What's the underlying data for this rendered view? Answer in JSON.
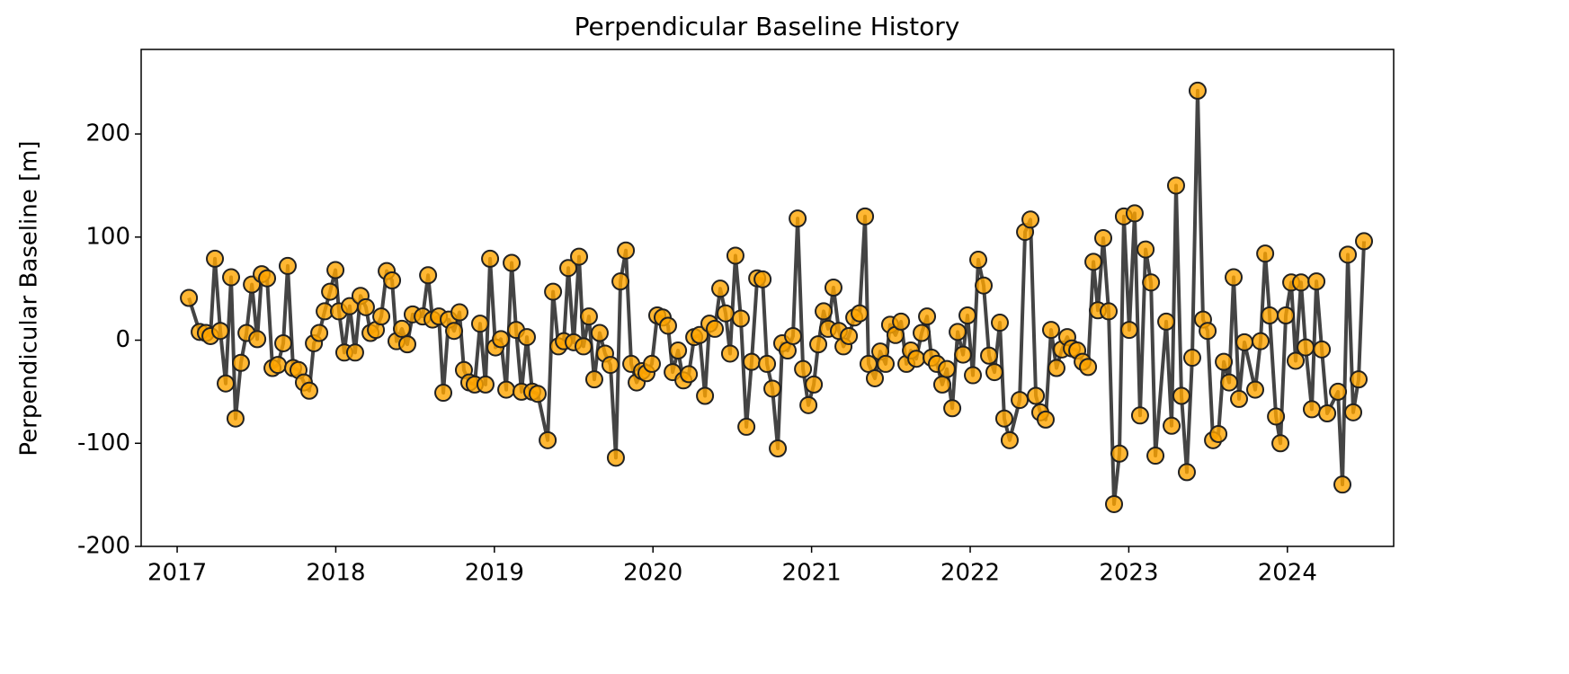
{
  "chart_data": {
    "type": "line",
    "title": "Perpendicular Baseline History",
    "ylabel": "Perpendicular Baseline [m]",
    "line_color": "#444444",
    "marker_color": "#ffa500",
    "marker_edge": "#222222",
    "xlim": [
      2016.773,
      2024.67
    ],
    "xticks": [
      2017,
      2018,
      2019,
      2020,
      2021,
      2022,
      2023,
      2024
    ],
    "ylim": [
      -200,
      282
    ],
    "yticks": [
      -200,
      -100,
      0,
      100,
      200
    ],
    "x": [
      2017.074,
      2017.142,
      2017.181,
      2017.21,
      2017.238,
      2017.272,
      2017.306,
      2017.34,
      2017.368,
      2017.402,
      2017.437,
      2017.471,
      2017.505,
      2017.533,
      2017.567,
      2017.601,
      2017.635,
      2017.669,
      2017.697,
      2017.731,
      2017.765,
      2017.799,
      2017.833,
      2017.862,
      2017.896,
      2017.93,
      2017.964,
      2017.998,
      2018.02,
      2018.054,
      2018.088,
      2018.122,
      2018.156,
      2018.19,
      2018.219,
      2018.253,
      2018.287,
      2018.321,
      2018.355,
      2018.383,
      2018.417,
      2018.451,
      2018.485,
      2018.548,
      2018.582,
      2018.61,
      2018.65,
      2018.678,
      2018.712,
      2018.746,
      2018.78,
      2018.808,
      2018.842,
      2018.876,
      2018.91,
      2018.944,
      2018.973,
      2019.007,
      2019.041,
      2019.075,
      2019.109,
      2019.137,
      2019.171,
      2019.205,
      2019.239,
      2019.273,
      2019.336,
      2019.37,
      2019.404,
      2019.438,
      2019.466,
      2019.5,
      2019.534,
      2019.562,
      2019.596,
      2019.63,
      2019.664,
      2019.698,
      2019.732,
      2019.766,
      2019.795,
      2019.829,
      2019.863,
      2019.897,
      2019.931,
      2019.959,
      2019.993,
      2020.027,
      2020.061,
      2020.095,
      2020.124,
      2020.158,
      2020.192,
      2020.226,
      2020.26,
      2020.294,
      2020.328,
      2020.356,
      2020.39,
      2020.424,
      2020.458,
      2020.486,
      2020.52,
      2020.554,
      2020.589,
      2020.622,
      2020.657,
      2020.691,
      2020.719,
      2020.753,
      2020.787,
      2020.815,
      2020.849,
      2020.883,
      2020.912,
      2020.946,
      2020.98,
      2021.014,
      2021.042,
      2021.076,
      2021.104,
      2021.138,
      2021.172,
      2021.201,
      2021.235,
      2021.269,
      2021.303,
      2021.337,
      2021.359,
      2021.399,
      2021.433,
      2021.467,
      2021.495,
      2021.529,
      2021.564,
      2021.598,
      2021.626,
      2021.66,
      2021.694,
      2021.728,
      2021.756,
      2021.79,
      2021.824,
      2021.853,
      2021.887,
      2021.921,
      2021.955,
      2021.983,
      2022.017,
      2022.051,
      2022.085,
      2022.119,
      2022.153,
      2022.187,
      2022.215,
      2022.249,
      2022.312,
      2022.346,
      2022.38,
      2022.414,
      2022.442,
      2022.476,
      2022.51,
      2022.544,
      2022.578,
      2022.612,
      2022.641,
      2022.675,
      2022.709,
      2022.743,
      2022.777,
      2022.805,
      2022.839,
      2022.873,
      2022.907,
      2022.941,
      2022.969,
      2023.003,
      2023.037,
      2023.071,
      2023.106,
      2023.14,
      2023.168,
      2023.236,
      2023.27,
      2023.298,
      2023.332,
      2023.366,
      2023.4,
      2023.434,
      2023.468,
      2023.497,
      2023.531,
      2023.565,
      2023.599,
      2023.633,
      2023.661,
      2023.695,
      2023.729,
      2023.797,
      2023.831,
      2023.86,
      2023.888,
      2023.928,
      2023.956,
      2023.99,
      2024.024,
      2024.052,
      2024.086,
      2024.115,
      2024.154,
      2024.183,
      2024.217,
      2024.251,
      2024.319,
      2024.347,
      2024.381,
      2024.415,
      2024.449,
      2024.483
    ],
    "values": [
      41,
      8,
      7,
      4,
      79,
      9,
      -42,
      61,
      -76,
      -22,
      7,
      54,
      1,
      64,
      60,
      -27,
      -24,
      -3,
      72,
      -27,
      -29,
      -41,
      -49,
      -3,
      7,
      28,
      47,
      68,
      28,
      -12,
      33,
      -12,
      43,
      32,
      7,
      10,
      23,
      67,
      58,
      -1,
      11,
      -4,
      25,
      23,
      63,
      20,
      23,
      -51,
      20,
      9,
      27,
      -29,
      -41,
      -43,
      16,
      -43,
      79,
      -7,
      1,
      -48,
      75,
      10,
      -50,
      3,
      -50,
      -52,
      -97,
      47,
      -6,
      -1,
      70,
      -2,
      81,
      -6,
      23,
      -38,
      7,
      -13,
      -24,
      -114,
      57,
      87,
      -23,
      -41,
      -30,
      -32,
      -23,
      24,
      22,
      14,
      -31,
      -10,
      -39,
      -33,
      3,
      5,
      -54,
      16,
      11,
      50,
      26,
      -13,
      82,
      21,
      -84,
      -21,
      60,
      59,
      -23,
      -47,
      -105,
      -3,
      -10,
      4,
      118,
      -28,
      -63,
      -43,
      -4,
      28,
      11,
      51,
      9,
      -6,
      4,
      22,
      26,
      120,
      -23,
      -37,
      -11,
      -23,
      15,
      5,
      18,
      -23,
      -10,
      -18,
      7,
      23,
      -17,
      -23,
      -43,
      -28,
      -66,
      8,
      -14,
      24,
      -34,
      78,
      53,
      -15,
      -31,
      17,
      -76,
      -97,
      -58,
      105,
      117,
      -54,
      -70,
      -77,
      10,
      -27,
      -9,
      3,
      -8,
      -10,
      -21,
      -26,
      76,
      29,
      99,
      28,
      -159,
      -110,
      120,
      10,
      123,
      -73,
      88,
      56,
      -112,
      18,
      -83,
      150,
      -54,
      -128,
      -17,
      242,
      20,
      9,
      -97,
      -91,
      -21,
      -41,
      61,
      -57,
      -2,
      -48,
      -1,
      84,
      24,
      -74,
      -100,
      24,
      56,
      -20,
      56,
      -7,
      -67,
      57,
      -9,
      -71,
      -50,
      -140,
      83,
      -70,
      -38,
      96
    ]
  }
}
